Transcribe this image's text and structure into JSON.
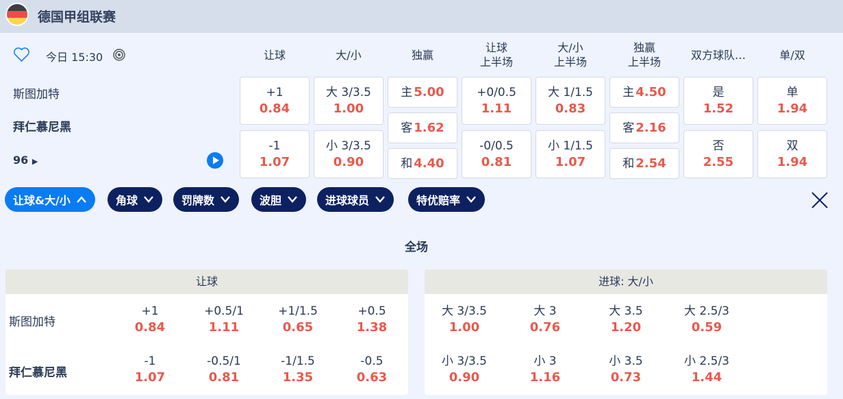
{
  "header": {
    "league": "德国甲组联赛",
    "flag_colors": [
      "#3d3d48",
      "#f04b4b",
      "#fcd64b"
    ]
  },
  "match": {
    "time": "今日 15:30",
    "home": "斯图加特",
    "away": "拜仁慕尼黑",
    "more_count": "96"
  },
  "columns": [
    "让球",
    "大/小",
    "独赢",
    "让球\n上半场",
    "大/小\n上半场",
    "独赢\n上半场",
    "双方球队…",
    "单/双"
  ],
  "odds": {
    "hdp": [
      {
        "label": "+1",
        "odd": "0.84"
      },
      {
        "label": "-1",
        "odd": "1.07"
      }
    ],
    "ou": [
      {
        "label": "大 3/3.5",
        "odd": "1.00"
      },
      {
        "label": "小 3/3.5",
        "odd": "0.90"
      }
    ],
    "x12": [
      {
        "label": "主",
        "odd": "5.00"
      },
      {
        "label": "客",
        "odd": "1.62"
      },
      {
        "label": "和",
        "odd": "4.40"
      }
    ],
    "hdp_1h": [
      {
        "label": "+0/0.5",
        "odd": "1.11"
      },
      {
        "label": "-0/0.5",
        "odd": "0.81"
      }
    ],
    "ou_1h": [
      {
        "label": "大 1/1.5",
        "odd": "0.83"
      },
      {
        "label": "小 1/1.5",
        "odd": "1.07"
      }
    ],
    "x12_1h": [
      {
        "label": "主",
        "odd": "4.50"
      },
      {
        "label": "客",
        "odd": "2.16"
      },
      {
        "label": "和",
        "odd": "2.54"
      }
    ],
    "btts": [
      {
        "label": "是",
        "odd": "1.52"
      },
      {
        "label": "否",
        "odd": "2.55"
      }
    ],
    "oe": [
      {
        "label": "单",
        "odd": "1.94"
      },
      {
        "label": "双",
        "odd": "1.94"
      }
    ]
  },
  "filters": [
    "让球&大/小",
    "角球",
    "罚牌数",
    "波胆",
    "进球球员",
    "特优赔率"
  ],
  "section_title": "全场",
  "handicap_table": {
    "title": "让球",
    "teams": [
      "斯图加特",
      "拜仁慕尼黑"
    ],
    "home": [
      {
        "label": "+1",
        "odd": "0.84"
      },
      {
        "label": "+0.5/1",
        "odd": "1.11"
      },
      {
        "label": "+1/1.5",
        "odd": "0.65"
      },
      {
        "label": "+0.5",
        "odd": "1.38"
      }
    ],
    "away": [
      {
        "label": "-1",
        "odd": "1.07"
      },
      {
        "label": "-0.5/1",
        "odd": "0.81"
      },
      {
        "label": "-1/1.5",
        "odd": "1.35"
      },
      {
        "label": "-0.5",
        "odd": "0.63"
      }
    ]
  },
  "goals_table": {
    "title": "进球: 大/小",
    "over": [
      {
        "label": "大 3/3.5",
        "odd": "1.00"
      },
      {
        "label": "大 3",
        "odd": "0.76"
      },
      {
        "label": "大 3.5",
        "odd": "1.20"
      },
      {
        "label": "大 2.5/3",
        "odd": "0.59"
      }
    ],
    "under": [
      {
        "label": "小 3/3.5",
        "odd": "0.90"
      },
      {
        "label": "小 3",
        "odd": "1.16"
      },
      {
        "label": "小 3.5",
        "odd": "0.73"
      },
      {
        "label": "小 2.5/3",
        "odd": "1.44"
      }
    ]
  }
}
